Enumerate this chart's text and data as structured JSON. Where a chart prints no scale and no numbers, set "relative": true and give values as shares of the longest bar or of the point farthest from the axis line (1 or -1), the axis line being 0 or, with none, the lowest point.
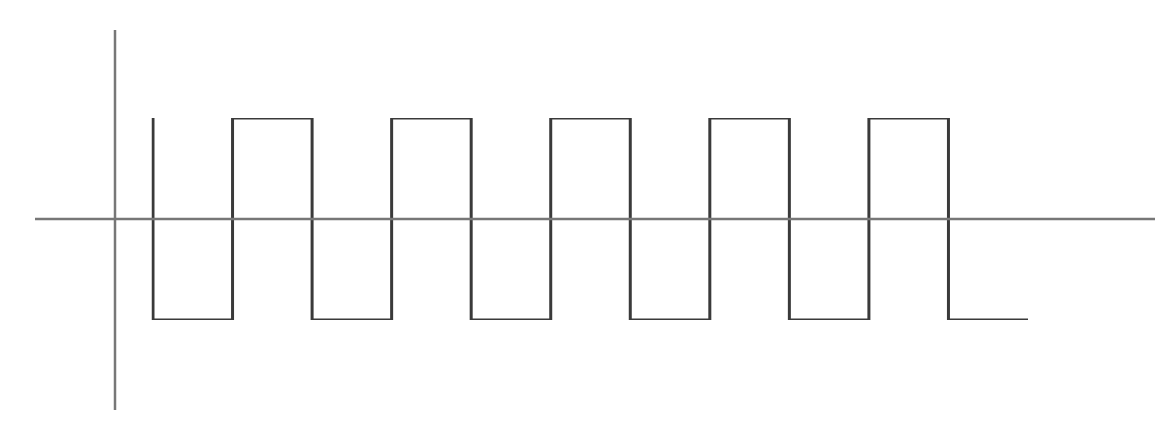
{
  "chart_data": {
    "type": "step",
    "relative": true,
    "categories": [
      null,
      null,
      null,
      null,
      null,
      null,
      null,
      null,
      null,
      null,
      null,
      null
    ],
    "values": [
      1,
      -1,
      1,
      -1,
      1,
      -1,
      1,
      -1,
      1,
      -1,
      1,
      -1
    ],
    "color": "#3a3a3a"
  }
}
